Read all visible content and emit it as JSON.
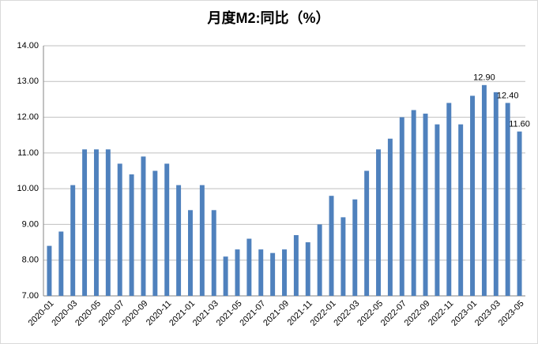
{
  "chart_data": {
    "type": "bar",
    "title": "月度M2:同比（%）",
    "categories": [
      "2020-01",
      null,
      "2020-03",
      null,
      "2020-05",
      null,
      "2020-07",
      null,
      "2020-09",
      null,
      "2020-11",
      null,
      "2021-01",
      null,
      "2021-03",
      null,
      "2021-05",
      null,
      "2021-07",
      null,
      "2021-09",
      null,
      "2021-11",
      null,
      "2022-01",
      null,
      "2022-03",
      null,
      "2022-05",
      null,
      "2022-07",
      null,
      "2022-09",
      null,
      "2022-11",
      null,
      "2023-01",
      null,
      "2023-03",
      null,
      "2023-05"
    ],
    "values": [
      8.4,
      8.8,
      10.1,
      11.1,
      11.1,
      11.1,
      10.7,
      10.4,
      10.9,
      10.5,
      10.7,
      10.1,
      9.4,
      10.1,
      9.4,
      8.1,
      8.3,
      8.6,
      8.3,
      8.2,
      8.3,
      8.7,
      8.5,
      9.0,
      9.8,
      9.2,
      9.7,
      10.5,
      11.1,
      11.4,
      12.0,
      12.2,
      12.1,
      11.8,
      12.4,
      11.8,
      12.6,
      12.9,
      12.7,
      12.4,
      11.6
    ],
    "value_labels": [
      null,
      null,
      null,
      null,
      null,
      null,
      null,
      null,
      null,
      null,
      null,
      null,
      null,
      null,
      null,
      null,
      null,
      null,
      null,
      null,
      null,
      null,
      null,
      null,
      null,
      null,
      null,
      null,
      null,
      null,
      null,
      null,
      null,
      null,
      null,
      null,
      null,
      "12.90",
      null,
      "12.40",
      "11.60"
    ],
    "color": "#4f81bd",
    "ylim": [
      7,
      14
    ],
    "yticks": [
      {
        "value": 7,
        "label": "7.00"
      },
      {
        "value": 8,
        "label": "8.00"
      },
      {
        "value": 9,
        "label": "9.00"
      },
      {
        "value": 10,
        "label": "10.00"
      },
      {
        "value": 11,
        "label": "11.00"
      },
      {
        "value": 12,
        "label": "12.00"
      },
      {
        "value": 13,
        "label": "13.00"
      },
      {
        "value": 14,
        "label": "14.00"
      }
    ],
    "grid": true
  }
}
